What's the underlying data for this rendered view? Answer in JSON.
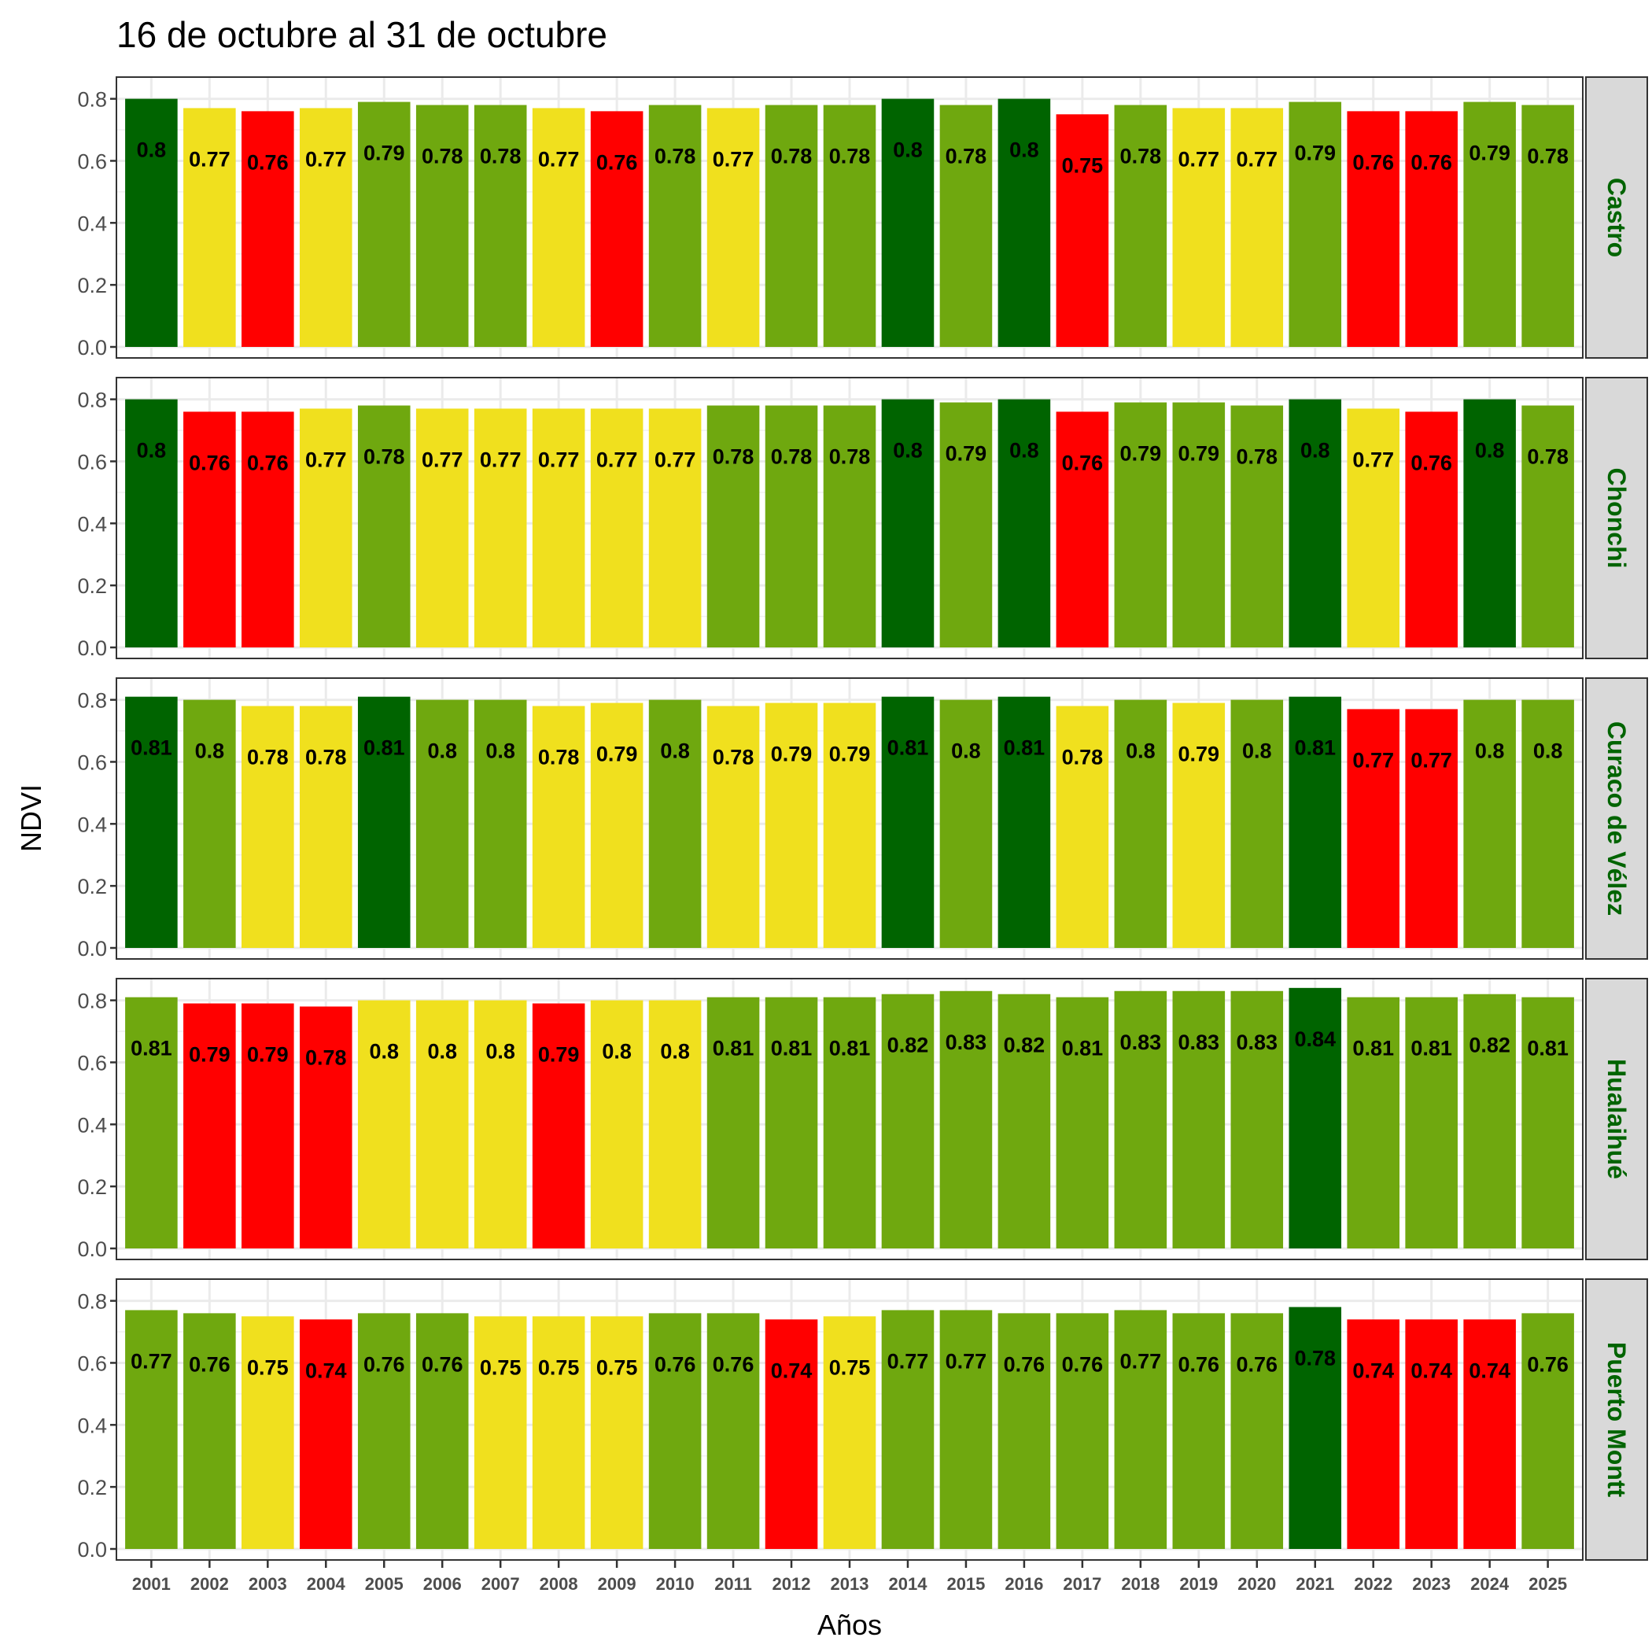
{
  "chart_data": {
    "type": "bar",
    "title": "16 de octubre al 31 de octubre",
    "xlabel": "Años",
    "ylabel": "NDVI",
    "ylim": [
      0,
      0.87
    ],
    "yticks": [
      "0.0",
      "0.2",
      "0.4",
      "0.6",
      "0.8"
    ],
    "ytick_values": [
      0.0,
      0.2,
      0.4,
      0.6,
      0.8
    ],
    "grid": true,
    "layout": "facet rows",
    "categories": [
      "2001",
      "2002",
      "2003",
      "2004",
      "2005",
      "2006",
      "2007",
      "2008",
      "2009",
      "2010",
      "2011",
      "2012",
      "2013",
      "2014",
      "2015",
      "2016",
      "2017",
      "2018",
      "2019",
      "2020",
      "2021",
      "2022",
      "2023",
      "2024",
      "2025"
    ],
    "color_classes": {
      "very_high": "#006400",
      "high": "#6FA80F",
      "medium": "#F0E01E",
      "low": "#FF0000"
    },
    "series": [
      {
        "name": "Castro",
        "values": [
          0.8,
          0.77,
          0.76,
          0.77,
          0.79,
          0.78,
          0.78,
          0.77,
          0.76,
          0.78,
          0.77,
          0.78,
          0.78,
          0.8,
          0.78,
          0.8,
          0.75,
          0.78,
          0.77,
          0.77,
          0.79,
          0.76,
          0.76,
          0.79,
          0.78
        ],
        "classes": [
          "very_high",
          "medium",
          "low",
          "medium",
          "high",
          "high",
          "high",
          "medium",
          "low",
          "high",
          "medium",
          "high",
          "high",
          "very_high",
          "high",
          "very_high",
          "low",
          "high",
          "medium",
          "medium",
          "high",
          "low",
          "low",
          "high",
          "high"
        ]
      },
      {
        "name": "Chonchi",
        "values": [
          0.8,
          0.76,
          0.76,
          0.77,
          0.78,
          0.77,
          0.77,
          0.77,
          0.77,
          0.77,
          0.78,
          0.78,
          0.78,
          0.8,
          0.79,
          0.8,
          0.76,
          0.79,
          0.79,
          0.78,
          0.8,
          0.77,
          0.76,
          0.8,
          0.78
        ],
        "classes": [
          "very_high",
          "low",
          "low",
          "medium",
          "high",
          "medium",
          "medium",
          "medium",
          "medium",
          "medium",
          "high",
          "high",
          "high",
          "very_high",
          "high",
          "very_high",
          "low",
          "high",
          "high",
          "high",
          "very_high",
          "medium",
          "low",
          "very_high",
          "high"
        ]
      },
      {
        "name": "Curaco de Vélez",
        "values": [
          0.81,
          0.8,
          0.78,
          0.78,
          0.81,
          0.8,
          0.8,
          0.78,
          0.79,
          0.8,
          0.78,
          0.79,
          0.79,
          0.81,
          0.8,
          0.81,
          0.78,
          0.8,
          0.79,
          0.8,
          0.81,
          0.77,
          0.77,
          0.8,
          0.8
        ],
        "classes": [
          "very_high",
          "high",
          "medium",
          "medium",
          "very_high",
          "high",
          "high",
          "medium",
          "medium",
          "high",
          "medium",
          "medium",
          "medium",
          "very_high",
          "high",
          "very_high",
          "medium",
          "high",
          "medium",
          "high",
          "very_high",
          "low",
          "low",
          "high",
          "high"
        ]
      },
      {
        "name": "Hualaihué",
        "values": [
          0.81,
          0.79,
          0.79,
          0.78,
          0.8,
          0.8,
          0.8,
          0.79,
          0.8,
          0.8,
          0.81,
          0.81,
          0.81,
          0.82,
          0.83,
          0.82,
          0.81,
          0.83,
          0.83,
          0.83,
          0.84,
          0.81,
          0.81,
          0.82,
          0.81
        ],
        "classes": [
          "high",
          "low",
          "low",
          "low",
          "medium",
          "medium",
          "medium",
          "low",
          "medium",
          "medium",
          "high",
          "high",
          "high",
          "high",
          "high",
          "high",
          "high",
          "high",
          "high",
          "high",
          "very_high",
          "high",
          "high",
          "high",
          "high"
        ]
      },
      {
        "name": "Puerto Montt",
        "values": [
          0.77,
          0.76,
          0.75,
          0.74,
          0.76,
          0.76,
          0.75,
          0.75,
          0.75,
          0.76,
          0.76,
          0.74,
          0.75,
          0.77,
          0.77,
          0.76,
          0.76,
          0.77,
          0.76,
          0.76,
          0.78,
          0.74,
          0.74,
          0.74,
          0.76
        ],
        "classes": [
          "high",
          "high",
          "medium",
          "low",
          "high",
          "high",
          "medium",
          "medium",
          "medium",
          "high",
          "high",
          "low",
          "medium",
          "high",
          "high",
          "high",
          "high",
          "high",
          "high",
          "high",
          "very_high",
          "low",
          "low",
          "low",
          "high"
        ]
      }
    ]
  }
}
